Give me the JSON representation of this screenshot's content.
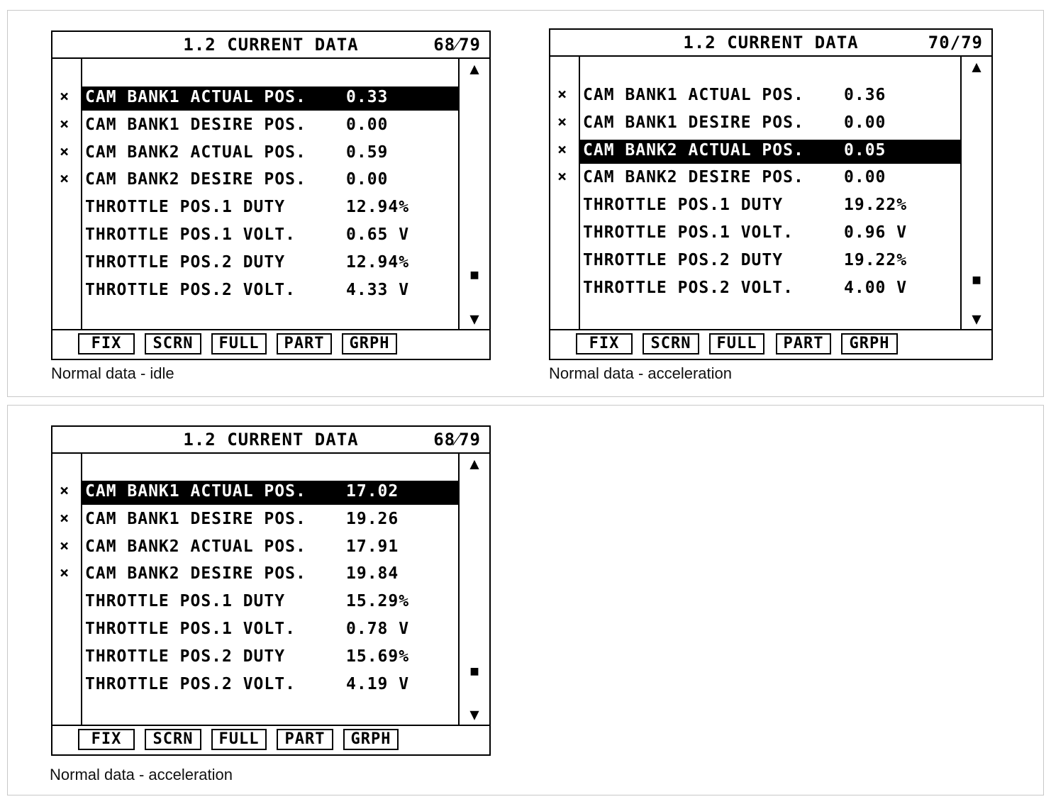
{
  "panels": [
    {
      "title": "1.2 CURRENT DATA",
      "page": "68⁄79",
      "caption": "Normal data - idle",
      "selected": 0,
      "rows": [
        {
          "marker": "×",
          "name": "CAM BANK1 ACTUAL POS.",
          "value": "0.33"
        },
        {
          "marker": "×",
          "name": "CAM BANK1 DESIRE POS.",
          "value": "0.00"
        },
        {
          "marker": "×",
          "name": "CAM BANK2 ACTUAL POS.",
          "value": "0.59"
        },
        {
          "marker": "×",
          "name": "CAM BANK2 DESIRE POS.",
          "value": "0.00"
        },
        {
          "marker": "",
          "name": "THROTTLE POS.1 DUTY",
          "value": "12.94%"
        },
        {
          "marker": "",
          "name": "THROTTLE POS.1 VOLT.",
          "value": "0.65 V"
        },
        {
          "marker": "",
          "name": "THROTTLE POS.2 DUTY",
          "value": "12.94%"
        },
        {
          "marker": "",
          "name": "THROTTLE POS.2 VOLT.",
          "value": "4.33 V"
        }
      ]
    },
    {
      "title": "1.2 CURRENT DATA",
      "page": "70/79",
      "caption": "Normal data - acceleration",
      "selected": 2,
      "rows": [
        {
          "marker": "×",
          "name": "CAM BANK1 ACTUAL POS.",
          "value": "0.36"
        },
        {
          "marker": "×",
          "name": "CAM BANK1 DESIRE POS.",
          "value": "0.00"
        },
        {
          "marker": "×",
          "name": "CAM BANK2 ACTUAL POS.",
          "value": "0.05"
        },
        {
          "marker": "×",
          "name": "CAM BANK2 DESIRE POS.",
          "value": "0.00"
        },
        {
          "marker": "",
          "name": "THROTTLE POS.1 DUTY",
          "value": "19.22%"
        },
        {
          "marker": "",
          "name": "THROTTLE POS.1 VOLT.",
          "value": "0.96 V"
        },
        {
          "marker": "",
          "name": "THROTTLE POS.2 DUTY",
          "value": "19.22%"
        },
        {
          "marker": "",
          "name": "THROTTLE POS.2 VOLT.",
          "value": "4.00 V"
        }
      ]
    },
    {
      "title": "1.2 CURRENT DATA",
      "page": "68⁄79",
      "caption": "Normal data - acceleration",
      "selected": 0,
      "rows": [
        {
          "marker": "×",
          "name": "CAM BANK1 ACTUAL POS.",
          "value": "17.02"
        },
        {
          "marker": "×",
          "name": "CAM BANK1 DESIRE POS.",
          "value": "19.26"
        },
        {
          "marker": "×",
          "name": "CAM BANK2 ACTUAL POS.",
          "value": "17.91"
        },
        {
          "marker": "×",
          "name": "CAM BANK2 DESIRE POS.",
          "value": "19.84"
        },
        {
          "marker": "",
          "name": "THROTTLE POS.1 DUTY",
          "value": "15.29%"
        },
        {
          "marker": "",
          "name": "THROTTLE POS.1 VOLT.",
          "value": "0.78 V"
        },
        {
          "marker": "",
          "name": "THROTTLE POS.2 DUTY",
          "value": "15.69%"
        },
        {
          "marker": "",
          "name": "THROTTLE POS.2 VOLT.",
          "value": "4.19 V"
        }
      ]
    }
  ],
  "function_keys": [
    "FIX",
    "SCRN",
    "FULL",
    "PART",
    "GRPH"
  ],
  "scroll": {
    "up": "▲",
    "thumb": "■",
    "down": "▼"
  }
}
